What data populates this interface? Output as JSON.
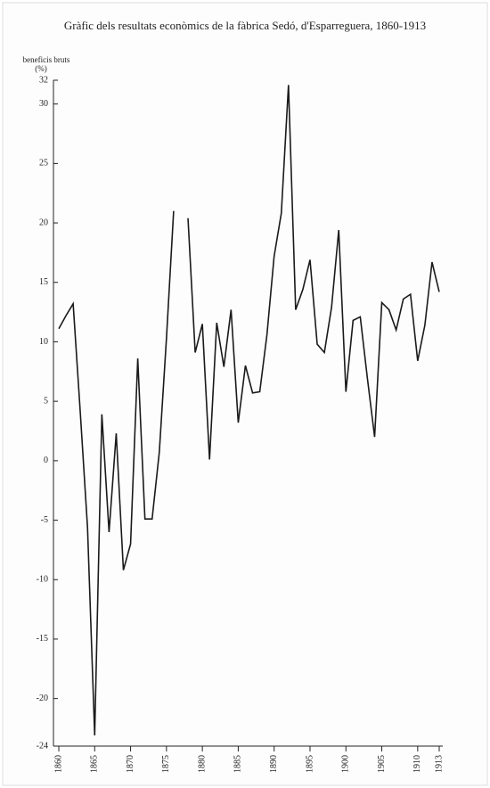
{
  "chart_data": {
    "type": "line",
    "title": "Gràfic dels resultats econòmics de la fàbrica Sedó, d'Esparreguera, 1860-1913",
    "ylabel": "beneficis bruts",
    "yunit": "(%)",
    "x": [
      1860,
      1861,
      1862,
      1863,
      1864,
      1865,
      1866,
      1867,
      1868,
      1869,
      1870,
      1871,
      1872,
      1873,
      1874,
      1875,
      1876,
      1877,
      1878,
      1879,
      1880,
      1881,
      1882,
      1883,
      1884,
      1885,
      1886,
      1887,
      1888,
      1889,
      1890,
      1891,
      1892,
      1893,
      1894,
      1895,
      1896,
      1897,
      1898,
      1899,
      1900,
      1901,
      1902,
      1903,
      1904,
      1905,
      1906,
      1907,
      1908,
      1909,
      1910,
      1911,
      1912,
      1913
    ],
    "series": [
      {
        "name": "beneficis bruts",
        "color": "#1a1a1a",
        "values": [
          11.1,
          12.2,
          13.2,
          4,
          -5.6,
          -23.1,
          3.9,
          -6,
          2.3,
          -9.2,
          -7,
          8.6,
          -4.9,
          -4.9,
          0.7,
          10.3,
          21,
          null,
          20.4,
          9.1,
          11.5,
          0.1,
          11.6,
          7.9,
          12.7,
          3.2,
          8,
          5.7,
          5.8,
          10.6,
          17.2,
          20.8,
          31.6,
          12.7,
          14.4,
          16.9,
          9.8,
          9.1,
          12.9,
          19.4,
          5.8,
          11.8,
          12.1,
          6.9,
          2,
          13.3,
          12.7,
          11,
          13.6,
          14,
          8.4,
          11.4,
          16.7,
          14.2
        ]
      }
    ],
    "xlim": [
      1860,
      1913
    ],
    "xticks": [
      1860,
      1865,
      1870,
      1875,
      1880,
      1885,
      1890,
      1895,
      1900,
      1905,
      1910,
      1913
    ],
    "ylim": [
      -24,
      32
    ],
    "yticks": [
      -24,
      -20,
      -15,
      -10,
      -5,
      0,
      5,
      10,
      15,
      20,
      25,
      30,
      32
    ]
  }
}
